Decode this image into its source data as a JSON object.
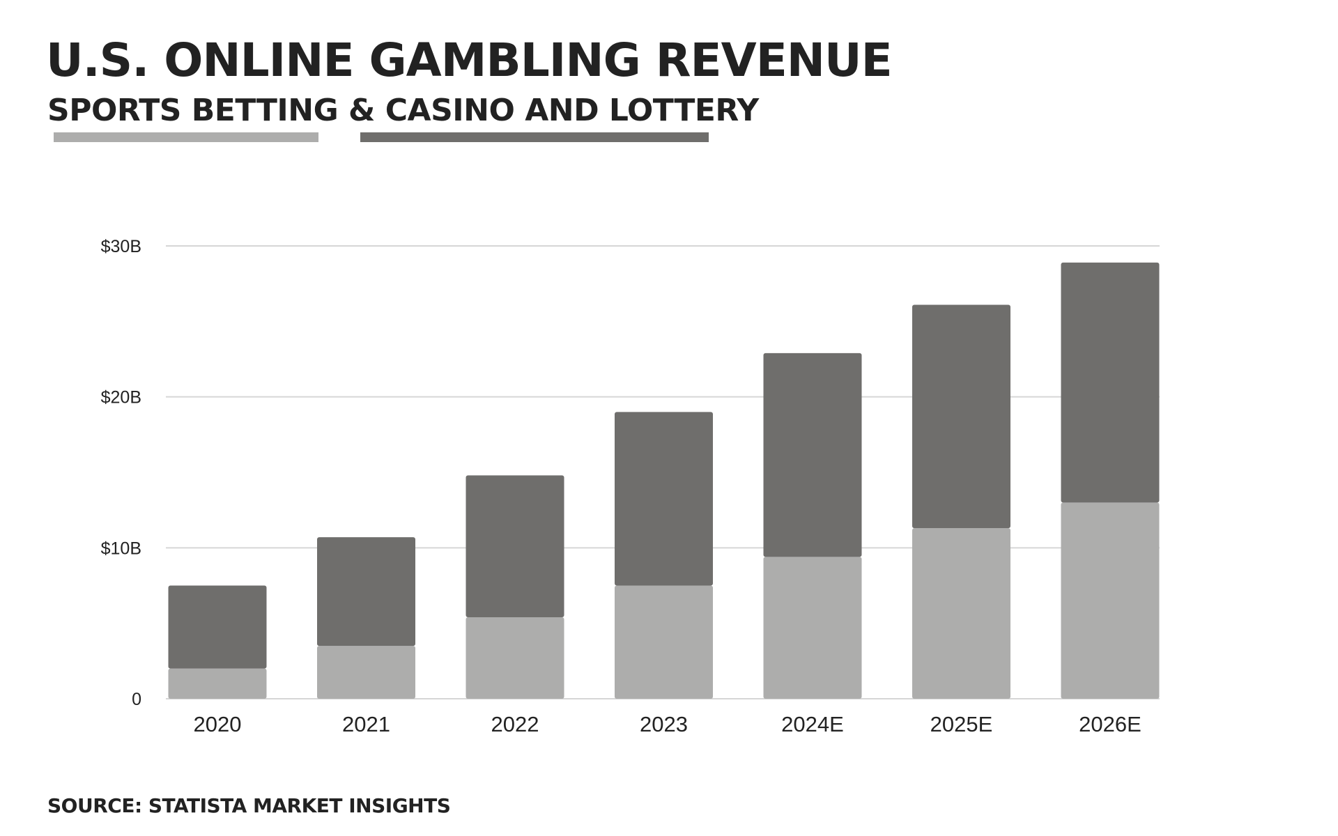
{
  "title": "U.S. ONLINE GAMBLING REVENUE",
  "subtitle": {
    "series_a": "SPORTS BETTING",
    "connector": "&",
    "series_b": "CASINO AND LOTTERY"
  },
  "source": "SOURCE: STATISTA MARKET INSIGHTS",
  "colors": {
    "sports_betting": "#adadac",
    "casino_and_lottery": "#6f6e6c",
    "gridline": "#d6d6d6",
    "text": "#222222"
  },
  "chart_data": {
    "type": "bar",
    "stacked": true,
    "categories": [
      "2020",
      "2021",
      "2022",
      "2023",
      "2024E",
      "2025E",
      "2026E"
    ],
    "series": [
      {
        "name": "SPORTS BETTING",
        "values": [
          2.0,
          3.5,
          5.4,
          7.5,
          9.4,
          11.3,
          13.0
        ]
      },
      {
        "name": "CASINO AND LOTTERY",
        "values": [
          5.5,
          7.2,
          9.4,
          11.5,
          13.5,
          14.8,
          15.9
        ]
      }
    ],
    "ylim": [
      0,
      30
    ],
    "yticks": [
      {
        "value": 0,
        "label": "0"
      },
      {
        "value": 10,
        "label": "$10B"
      },
      {
        "value": 20,
        "label": "$20B"
      },
      {
        "value": 30,
        "label": "$30B"
      }
    ],
    "grid": true,
    "legend": "top-left (underline bars beneath subtitle)"
  }
}
